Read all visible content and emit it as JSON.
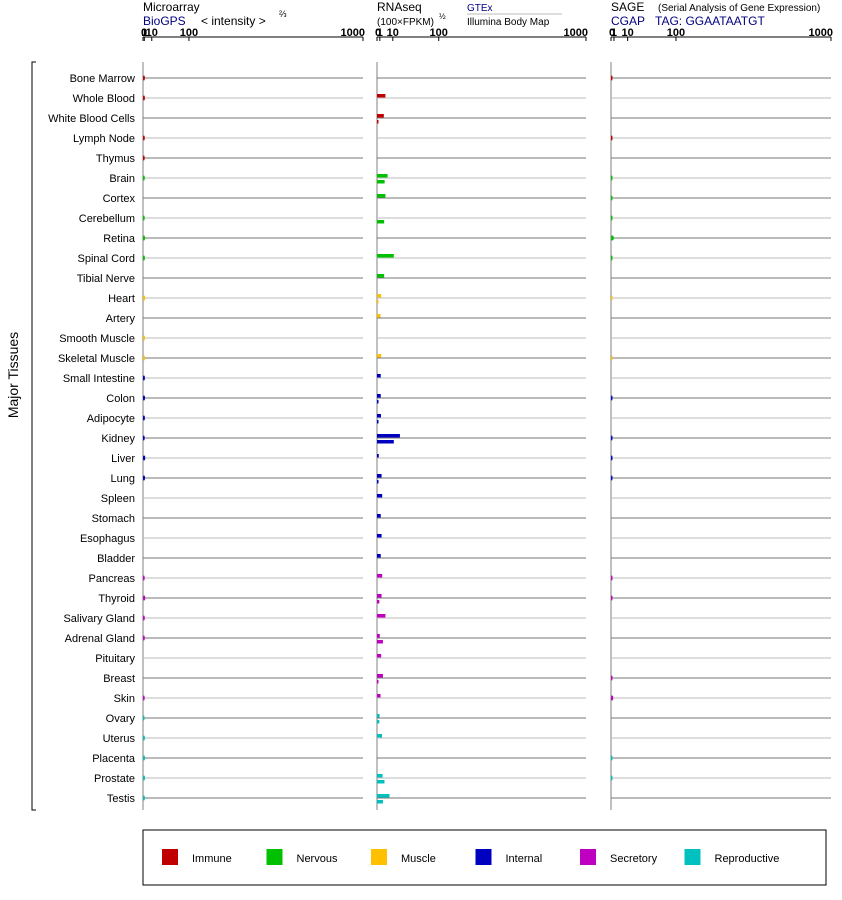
{
  "headers": {
    "microarray": {
      "title": "Microarray",
      "source": "BioGPS",
      "scale": "< intensity >",
      "scale_exp": "⅔"
    },
    "rnaseq": {
      "title": "RNAseq",
      "scale": "(100×FPKM)",
      "scale_exp": "½",
      "source1": "GTEx",
      "source2": "Illumina Body Map"
    },
    "sage": {
      "title": "SAGE",
      "subtitle": "(Serial Analysis of Gene Expression)",
      "source": "CGAP",
      "tag": "TAG: GGAATAATGT"
    }
  },
  "y_axis_label": "Major Tissues",
  "colors": {
    "Immune": "#c00000",
    "Nervous": "#00c000",
    "Muscle": "#ffc000",
    "Internal": "#0000c0",
    "Secretory": "#c000c0",
    "Reproductive": "#00c0c0"
  },
  "chart_data": [
    {
      "type": "bar",
      "panel": "Microarray",
      "scale": "(x+1)^(2/3) power scale",
      "xlim": [
        0,
        1000
      ],
      "ticks": [
        "0",
        "1",
        "10",
        "100",
        "1000"
      ],
      "categories": [
        "Bone Marrow",
        "Whole Blood",
        "White Blood Cells",
        "Lymph Node",
        "Thymus",
        "Brain",
        "Cortex",
        "Cerebellum",
        "Retina",
        "Spinal Cord",
        "Tibial Nerve",
        "Heart",
        "Artery",
        "Smooth Muscle",
        "Skeletal Muscle",
        "Small Intestine",
        "Colon",
        "Adipocyte",
        "Kidney",
        "Liver",
        "Lung",
        "Spleen",
        "Stomach",
        "Esophagus",
        "Bladder",
        "Pancreas",
        "Thyroid",
        "Salivary Gland",
        "Adrenal Gland",
        "Pituitary",
        "Breast",
        "Skin",
        "Ovary",
        "Uterus",
        "Placenta",
        "Prostate",
        "Testis"
      ],
      "groups": [
        "Immune",
        "Immune",
        "Immune",
        "Immune",
        "Immune",
        "Nervous",
        "Nervous",
        "Nervous",
        "Nervous",
        "Nervous",
        "Nervous",
        "Muscle",
        "Muscle",
        "Muscle",
        "Muscle",
        "Internal",
        "Internal",
        "Internal",
        "Internal",
        "Internal",
        "Internal",
        "Internal",
        "Internal",
        "Internal",
        "Internal",
        "Secretory",
        "Secretory",
        "Secretory",
        "Secretory",
        "Secretory",
        "Secretory",
        "Secretory",
        "Reproductive",
        "Reproductive",
        "Reproductive",
        "Reproductive",
        "Reproductive"
      ],
      "values": [
        1.5,
        1.5,
        null,
        1.4,
        1.3,
        1.4,
        null,
        1.3,
        1.6,
        1.5,
        null,
        1.8,
        null,
        1.6,
        1.6,
        1.5,
        1.6,
        1.5,
        1.3,
        1.8,
        1.6,
        null,
        null,
        null,
        null,
        1.3,
        1.8,
        1.4,
        1.4,
        null,
        null,
        1.3,
        1.1,
        1.5,
        1.6,
        1.6,
        1.5
      ]
    },
    {
      "type": "bar",
      "panel": "RNAseq",
      "scale": "(x+1)^(1/2) power scale",
      "xlim": [
        0,
        1000
      ],
      "ticks": [
        "0",
        "1",
        "10",
        "100",
        "1000"
      ],
      "series": [
        {
          "name": "GTEx",
          "values": [
            null,
            4,
            3,
            null,
            null,
            5.5,
            4,
            null,
            null,
            11,
            3.2,
            1.6,
            1.3,
            null,
            1.6,
            1.4,
            1.4,
            1.5,
            18,
            0.6,
            1.8,
            2.1,
            1.4,
            1.8,
            1.4,
            2.1,
            1.8,
            4,
            1,
            1.6,
            2.5,
            1.3,
            0.9,
            2,
            null,
            2.3,
            7
          ]
        },
        {
          "name": "Illumina Body Map",
          "values": [
            null,
            null,
            0.08,
            null,
            null,
            3.5,
            null,
            3.2,
            null,
            null,
            null,
            0.08,
            null,
            null,
            null,
            null,
            0.05,
            0.05,
            11,
            null,
            0.05,
            null,
            null,
            null,
            null,
            null,
            0.8,
            null,
            2.5,
            null,
            0.05,
            null,
            0.8,
            null,
            null,
            3.4,
            2.5
          ]
        }
      ]
    },
    {
      "type": "bar",
      "panel": "SAGE",
      "scale": "(x+1)^(1/2) power scale",
      "xlim": [
        0,
        1000
      ],
      "ticks": [
        "0",
        "1",
        "10",
        "100",
        "1000"
      ],
      "values": [
        0.02,
        null,
        null,
        0.02,
        null,
        0.02,
        0.02,
        0.02,
        0.9,
        0.02,
        null,
        0.01,
        null,
        null,
        0.01,
        null,
        0.02,
        null,
        0.02,
        0.02,
        0.02,
        null,
        null,
        null,
        null,
        0.02,
        0.02,
        null,
        null,
        null,
        0.02,
        0.7,
        null,
        null,
        0.02,
        0.02,
        null
      ]
    }
  ],
  "legend": [
    "Immune",
    "Nervous",
    "Muscle",
    "Internal",
    "Secretory",
    "Reproductive"
  ]
}
